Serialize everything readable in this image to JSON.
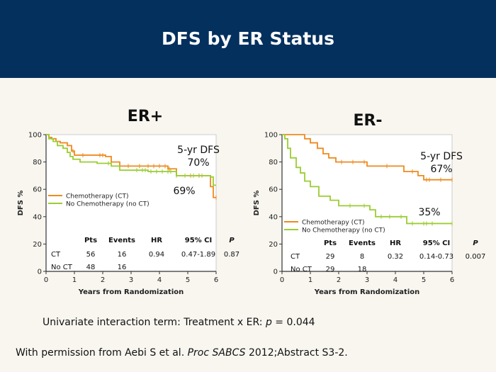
{
  "slide": {
    "title": "DFS by ER Status",
    "interaction_prefix": "Univariate interaction term: Treatment x ER: ",
    "interaction_p": "p",
    "interaction_value": " = 0.044",
    "citation_prefix": "With permission from Aebi S et al. ",
    "citation_journal": "Proc SABCS",
    "citation_suffix": " 2012;Abstract S3-2."
  },
  "colors": {
    "chemo": "#ee8a1f",
    "nochemo": "#9acd32",
    "header": "#04305e"
  },
  "chart_data": [
    {
      "type": "line",
      "title": "ER+",
      "xlabel": "Years from Randomization",
      "ylabel": "DFS %",
      "xlim": [
        0,
        6
      ],
      "ylim": [
        0,
        100
      ],
      "xticks": [
        0,
        1,
        2,
        3,
        4,
        5,
        6
      ],
      "yticks": [
        0,
        20,
        40,
        60,
        80,
        100
      ],
      "legend_position": "bottom-left",
      "annotations": [
        "5-yr DFS",
        "70%",
        "69%"
      ],
      "series": [
        {
          "name": "Chemotherapy (CT)",
          "color": "#ee8a1f",
          "x": [
            0,
            0.1,
            0.2,
            0.35,
            0.5,
            0.75,
            0.9,
            1.0,
            2.1,
            2.3,
            2.6,
            4.3,
            4.6,
            5.7,
            5.8,
            5.9,
            6.0
          ],
          "y": [
            100,
            98,
            97,
            95,
            94,
            92,
            88,
            85,
            84,
            80,
            77,
            75,
            70,
            70,
            62,
            54,
            54
          ],
          "censor_x": [
            0.95,
            1.3,
            1.9,
            2.0,
            2.9,
            3.3,
            3.6,
            3.8,
            4.0,
            4.2,
            4.35,
            5.1,
            5.4,
            6.0
          ]
        },
        {
          "name": "No Chemotherapy (no CT)",
          "color": "#9acd32",
          "x": [
            0,
            0.1,
            0.25,
            0.4,
            0.6,
            0.75,
            0.85,
            0.95,
            1.2,
            1.8,
            2.3,
            2.6,
            3.0,
            3.6,
            4.6,
            5.8,
            5.9,
            6.0
          ],
          "y": [
            100,
            97,
            95,
            92,
            90,
            87,
            84,
            82,
            80,
            79,
            77,
            74,
            74,
            73,
            70,
            69,
            63,
            63
          ],
          "censor_x": [
            2.2,
            3.2,
            3.4,
            3.5,
            3.7,
            3.9,
            4.1,
            4.3,
            4.4,
            4.6,
            4.9,
            5.2,
            5.5
          ]
        }
      ],
      "stats_table": {
        "headers": [
          "Pts",
          "Events",
          "HR",
          "95% CI",
          "P"
        ],
        "rows": [
          {
            "label": "CT",
            "cells": [
              "56",
              "16",
              "0.94",
              "0.47-1.89",
              "0.87"
            ]
          },
          {
            "label": "No CT",
            "cells": [
              "48",
              "16",
              "",
              "",
              ""
            ]
          }
        ]
      }
    },
    {
      "type": "line",
      "title": "ER-",
      "xlabel": "Years from Randomization",
      "ylabel": "DFS %",
      "xlim": [
        0,
        6
      ],
      "ylim": [
        0,
        100
      ],
      "xticks": [
        0,
        1,
        2,
        3,
        4,
        5,
        6
      ],
      "yticks": [
        0,
        20,
        40,
        60,
        80,
        100
      ],
      "legend_position": "bottom-left",
      "annotations": [
        "5-yr DFS",
        "67%",
        "35%"
      ],
      "series": [
        {
          "name": "Chemotherapy (CT)",
          "color": "#ee8a1f",
          "x": [
            0,
            0.8,
            1.0,
            1.25,
            1.45,
            1.65,
            1.9,
            2.0,
            3.0,
            4.3,
            4.8,
            5.0,
            6.0
          ],
          "y": [
            100,
            97,
            94,
            90,
            86,
            83,
            80,
            80,
            77,
            73,
            70,
            67,
            67
          ],
          "censor_x": [
            2.1,
            2.5,
            2.9,
            3.7,
            4.6,
            5.1,
            5.2,
            5.6,
            6.0
          ]
        },
        {
          "name": "No Chemotherapy (no CT)",
          "color": "#9acd32",
          "x": [
            0,
            0.1,
            0.2,
            0.3,
            0.5,
            0.65,
            0.8,
            1.0,
            1.3,
            1.7,
            2.0,
            2.6,
            3.1,
            3.3,
            4.4,
            6.0
          ],
          "y": [
            100,
            97,
            90,
            83,
            76,
            72,
            66,
            62,
            55,
            52,
            48,
            48,
            45,
            40,
            35,
            35
          ],
          "censor_x": [
            2.4,
            2.9,
            3.5,
            3.8,
            4.2,
            4.6,
            5.0,
            5.1,
            5.3,
            6.0
          ]
        }
      ],
      "stats_table": {
        "headers": [
          "Pts",
          "Events",
          "HR",
          "95% CI",
          "P"
        ],
        "rows": [
          {
            "label": "CT",
            "cells": [
              "29",
              "8",
              "0.32",
              "0.14-0.73",
              "0.007"
            ]
          },
          {
            "label": "No CT",
            "cells": [
              "29",
              "18",
              "",
              "",
              ""
            ]
          }
        ]
      }
    }
  ]
}
